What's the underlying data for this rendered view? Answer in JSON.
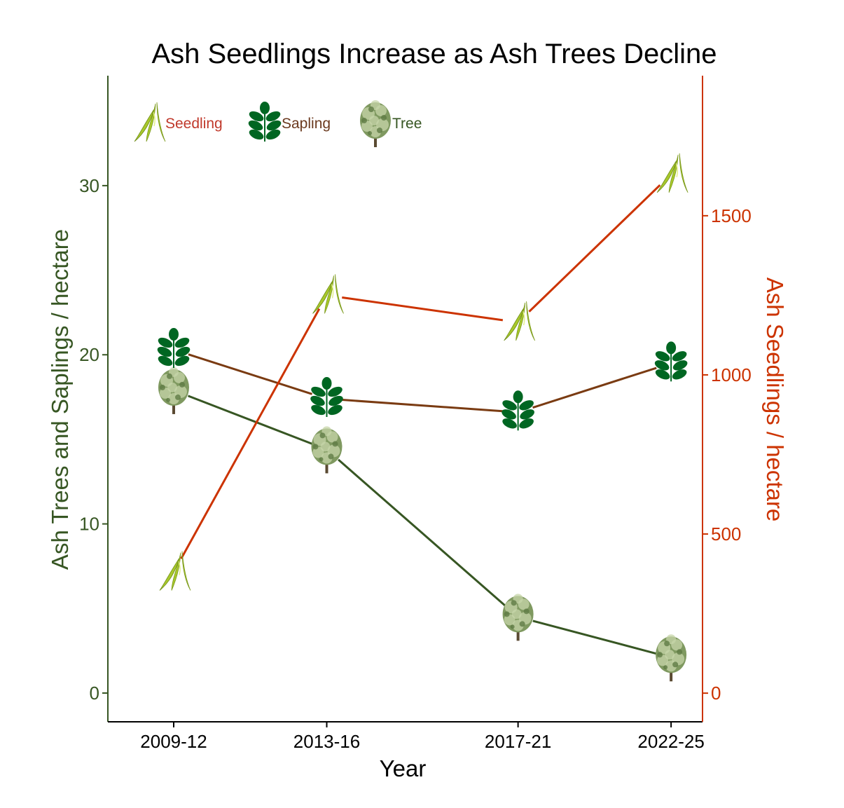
{
  "colors": {
    "tree": "#375623",
    "sapling": "#7a3b12",
    "seedling": "#cc3300",
    "axis_left": "#375623",
    "axis_right": "#cc3300",
    "legend_seedling": "#c0392b",
    "legend_sapling": "#6b3a1f",
    "legend_tree": "#375623",
    "leaf_dark": "#006622",
    "seedling_leaf": "#a8c82c",
    "seedling_leaf_light": "#e3f08c",
    "tree_canopy": "#7f9960",
    "tree_canopy_light": "#c7d5aa",
    "trunk": "#5a4a32"
  },
  "chart_data": {
    "type": "line",
    "title": "Ash Seedlings Increase as Ash Trees Decline",
    "xlabel": "Year",
    "ylabel_left": "Ash Trees and Saplings / hectare",
    "ylabel_right": "Ash Seedlings / hectare",
    "categories": [
      "2009-12",
      "2013-16",
      "2017-21",
      "2022-25"
    ],
    "x_positions": [
      0,
      1,
      2.25,
      3.25
    ],
    "ylim_left": [
      -1.7,
      36.5
    ],
    "ylim_right": [
      -90,
      1940
    ],
    "yticks_left": [
      0,
      10,
      20,
      30
    ],
    "yticks_right": [
      0,
      500,
      1000,
      1500
    ],
    "grid": false,
    "legend": {
      "placement": "top-left",
      "items": [
        {
          "label": "Seedling",
          "icon": "seedling-icon"
        },
        {
          "label": "Sapling",
          "icon": "sapling-icon"
        },
        {
          "label": "Tree",
          "icon": "tree-icon"
        }
      ]
    },
    "series": [
      {
        "name": "Tree",
        "axis": "left",
        "icon": "tree-icon",
        "values": [
          17.9,
          14.4,
          4.5,
          2.1
        ]
      },
      {
        "name": "Sapling",
        "axis": "left",
        "icon": "sapling-icon",
        "values": [
          20.3,
          17.4,
          16.6,
          19.5
        ]
      },
      {
        "name": "Seedling",
        "axis": "right",
        "icon": "seedling-icon",
        "values": [
          380,
          1250,
          1165,
          1630
        ]
      }
    ]
  }
}
